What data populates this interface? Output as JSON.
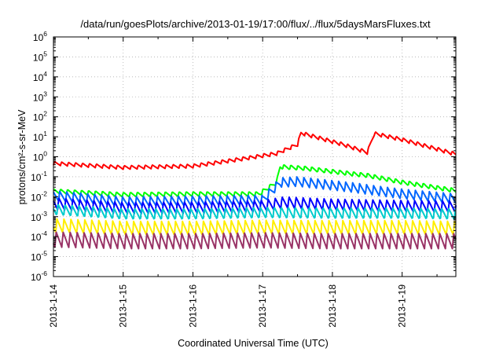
{
  "chart_data": {
    "type": "line",
    "title": "/data/run/goesPlots/archive/2013-01-19/17:00/flux/../flux/5daysMarsFluxes.txt",
    "xlabel": "Coordinated Universal Time (UTC)",
    "ylabel": "protons/cm²-s-sr-MeV",
    "yscale": "log",
    "ylim": [
      1e-06,
      1000000.0
    ],
    "xlim": [
      0,
      5.77
    ],
    "x_units": "days since 2013-1-14 00:00 UTC",
    "x_tick_labels": [
      "2013-1-14",
      "2013-1-15",
      "2013-1-16",
      "2013-1-17",
      "2013-1-18",
      "2013-1-19"
    ],
    "x_tick_values": [
      0,
      1,
      2,
      3,
      4,
      5
    ],
    "y_tick_labels": [
      {
        "base": "10",
        "exp": "-6"
      },
      {
        "base": "10",
        "exp": "-5"
      },
      {
        "base": "10",
        "exp": "-4"
      },
      {
        "base": "10",
        "exp": "-3"
      },
      {
        "base": "10",
        "exp": "-2"
      },
      {
        "base": "10",
        "exp": "-1"
      },
      {
        "base": "10",
        "exp": "0"
      },
      {
        "base": "10",
        "exp": "1"
      },
      {
        "base": "10",
        "exp": "2"
      },
      {
        "base": "10",
        "exp": "3"
      },
      {
        "base": "10",
        "exp": "4"
      },
      {
        "base": "10",
        "exp": "5"
      },
      {
        "base": "10",
        "exp": "6"
      }
    ],
    "grid": true,
    "series": [
      {
        "color": "#ff0000",
        "knots": [
          [
            0,
            0.45
          ],
          [
            1,
            0.28
          ],
          [
            2,
            0.33
          ],
          [
            2.7,
            0.75
          ],
          [
            3.2,
            1.4
          ],
          [
            3.5,
            4
          ],
          [
            3.55,
            15
          ],
          [
            4.15,
            4
          ],
          [
            4.5,
            1.6
          ],
          [
            4.6,
            14
          ],
          [
            5.0,
            7
          ],
          [
            5.77,
            1.3
          ]
        ]
      },
      {
        "color": "#00ff00",
        "knots": [
          [
            0,
            0.018
          ],
          [
            1,
            0.012
          ],
          [
            2,
            0.013
          ],
          [
            2.95,
            0.013
          ],
          [
            3.2,
            0.05
          ],
          [
            3.25,
            0.3
          ],
          [
            3.6,
            0.25
          ],
          [
            4.3,
            0.13
          ],
          [
            4.5,
            0.11
          ],
          [
            5.0,
            0.05
          ],
          [
            5.77,
            0.019
          ]
        ]
      },
      {
        "color": "#0066ff",
        "knots": [
          [
            0,
            0.01
          ],
          [
            1,
            0.005
          ],
          [
            2,
            0.0055
          ],
          [
            3.0,
            0.006
          ],
          [
            3.25,
            0.045
          ],
          [
            3.5,
            0.05
          ],
          [
            4.3,
            0.025
          ],
          [
            4.6,
            0.018
          ],
          [
            5.0,
            0.012
          ],
          [
            5.77,
            0.007
          ]
        ]
      },
      {
        "color": "#0000ff",
        "knots": [
          [
            0,
            0.004
          ],
          [
            1,
            0.0024
          ],
          [
            2,
            0.0025
          ],
          [
            3.0,
            0.003
          ],
          [
            3.3,
            0.0045
          ],
          [
            4.0,
            0.0035
          ],
          [
            5.0,
            0.003
          ],
          [
            5.77,
            0.0028
          ]
        ]
      },
      {
        "color": "#00cccc",
        "knots": [
          [
            0,
            0.002
          ],
          [
            1,
            0.0012
          ],
          [
            2,
            0.0012
          ],
          [
            3,
            0.0014
          ],
          [
            4,
            0.0013
          ],
          [
            5,
            0.0013
          ],
          [
            5.77,
            0.0012
          ]
        ]
      },
      {
        "color": "#ffee00",
        "knots": [
          [
            0,
            0.0003
          ],
          [
            1,
            0.00022
          ],
          [
            2,
            0.00022
          ],
          [
            3,
            0.00025
          ],
          [
            4,
            0.00024
          ],
          [
            5,
            0.00024
          ],
          [
            5.77,
            0.00022
          ]
        ]
      },
      {
        "color": "#993366",
        "knots": [
          [
            0,
            6e-05
          ],
          [
            1,
            5e-05
          ],
          [
            2,
            5e-05
          ],
          [
            3,
            5.5e-05
          ],
          [
            4,
            5e-05
          ],
          [
            5,
            5e-05
          ],
          [
            5.77,
            5e-05
          ]
        ]
      }
    ]
  }
}
